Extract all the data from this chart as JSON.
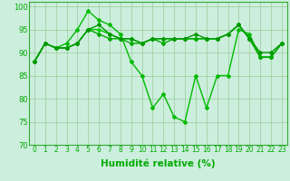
{
  "series": [
    {
      "x": [
        0,
        1,
        2,
        3,
        4,
        5,
        6,
        7,
        8,
        9,
        10,
        11,
        12,
        13,
        14,
        15,
        16,
        17,
        18,
        19,
        20,
        21,
        22,
        23
      ],
      "y": [
        88,
        92,
        91,
        91,
        92,
        95,
        95,
        94,
        93,
        93,
        92,
        93,
        93,
        93,
        93,
        93,
        93,
        93,
        94,
        96,
        93,
        89,
        89,
        92
      ],
      "color": "#00cc00",
      "marker": "D",
      "markersize": 2,
      "linewidth": 1.0
    },
    {
      "x": [
        0,
        1,
        2,
        3,
        4,
        5,
        6,
        7,
        8,
        9,
        10,
        11,
        12,
        13,
        14,
        15,
        16,
        17,
        18,
        19,
        20,
        21,
        22,
        23
      ],
      "y": [
        88,
        92,
        91,
        92,
        95,
        99,
        97,
        96,
        94,
        88,
        85,
        78,
        81,
        76,
        75,
        85,
        78,
        85,
        85,
        95,
        94,
        89,
        89,
        92
      ],
      "color": "#00bb00",
      "marker": "D",
      "markersize": 2,
      "linewidth": 1.0
    },
    {
      "x": [
        0,
        1,
        2,
        3,
        4,
        5,
        6,
        7,
        8,
        9,
        10,
        11,
        12,
        13,
        14,
        15,
        16,
        17,
        18,
        19,
        20,
        21,
        22,
        23
      ],
      "y": [
        88,
        92,
        91,
        91,
        92,
        95,
        94,
        93,
        93,
        92,
        92,
        93,
        92,
        93,
        93,
        93,
        93,
        93,
        94,
        96,
        93,
        89,
        89,
        92
      ],
      "color": "#00aa00",
      "marker": "D",
      "markersize": 2,
      "linewidth": 1.0
    },
    {
      "x": [
        0,
        1,
        2,
        3,
        4,
        5,
        6,
        7,
        8,
        9,
        10,
        11,
        12,
        13,
        14,
        15,
        16,
        17,
        18,
        19,
        20,
        21,
        22,
        23
      ],
      "y": [
        88,
        92,
        91,
        91,
        92,
        95,
        96,
        94,
        93,
        93,
        92,
        93,
        93,
        93,
        93,
        94,
        93,
        93,
        94,
        96,
        93,
        90,
        90,
        92
      ],
      "color": "#009900",
      "marker": "D",
      "markersize": 2,
      "linewidth": 1.0
    }
  ],
  "xlim": [
    -0.5,
    23.5
  ],
  "ylim": [
    70,
    101
  ],
  "yticks": [
    70,
    75,
    80,
    85,
    90,
    95,
    100
  ],
  "xticks": [
    0,
    1,
    2,
    3,
    4,
    5,
    6,
    7,
    8,
    9,
    10,
    11,
    12,
    13,
    14,
    15,
    16,
    17,
    18,
    19,
    20,
    21,
    22,
    23
  ],
  "xlabel": "Humidité relative (%)",
  "xlabel_color": "#00aa00",
  "grid_color": "#99cc99",
  "bg_color": "#cceedd",
  "axis_color": "#33aa33",
  "tick_color": "#00aa00",
  "tick_fontsize": 5.5,
  "xlabel_fontsize": 7.5
}
